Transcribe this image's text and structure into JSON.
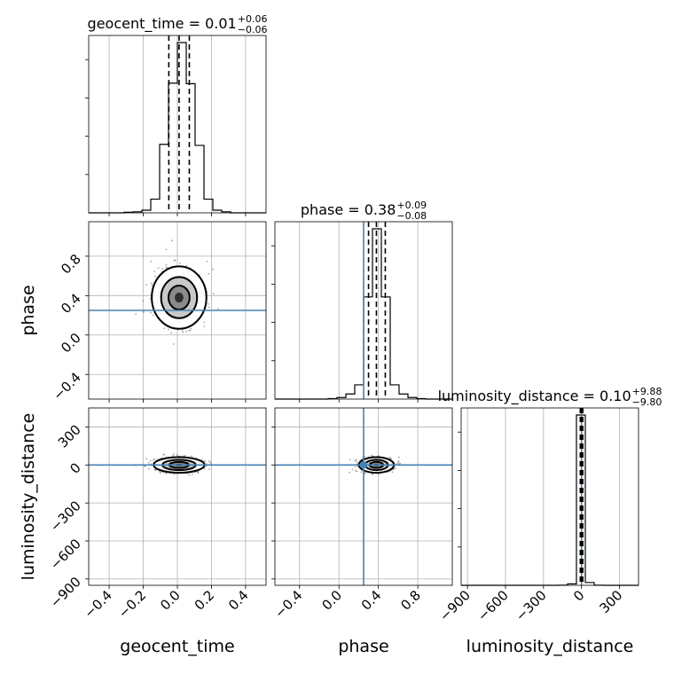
{
  "chart_data": {
    "type": "corner",
    "parameters": [
      "geocent_time",
      "phase",
      "luminosity_distance"
    ],
    "axis_labels": {
      "x": [
        "geocent_time",
        "phase",
        "luminosity_distance"
      ],
      "y": [
        "phase",
        "luminosity_distance"
      ]
    },
    "ranges": {
      "geocent_time": [
        -0.52,
        0.52
      ],
      "phase": [
        -0.65,
        1.15
      ],
      "luminosity_distance": [
        -950,
        450
      ]
    },
    "ticks": {
      "geocent_time": [
        -0.4,
        -0.2,
        0.0,
        0.2,
        0.4
      ],
      "phase": [
        -0.4,
        0.0,
        0.4,
        0.8
      ],
      "luminosity_distance": [
        -900,
        -600,
        -300,
        0,
        300
      ]
    },
    "tick_labels": {
      "geocent_time": [
        "−0.4",
        "−0.2",
        "0.0",
        "0.2",
        "0.4"
      ],
      "phase": [
        "−0.4",
        "0.0",
        "0.4",
        "0.8"
      ],
      "luminosity_distance": [
        "−900",
        "−600",
        "−300",
        "0",
        "300"
      ]
    },
    "titles": [
      {
        "param": "geocent_time",
        "prefix": "geocent_time = 0.01",
        "plus": "+0.06",
        "minus": "−0.06"
      },
      {
        "param": "phase",
        "prefix": "phase = 0.38",
        "plus": "+0.09",
        "minus": "−0.08"
      },
      {
        "param": "luminosity_distance",
        "prefix": "luminosity_distance = 0.10",
        "plus": "+9.88",
        "minus": "−9.80"
      }
    ],
    "medians": {
      "geocent_time": 0.01,
      "phase": 0.38,
      "luminosity_distance": 0.1
    },
    "quantile_lines": {
      "geocent_time": [
        -0.05,
        0.01,
        0.07
      ],
      "phase": [
        0.3,
        0.38,
        0.47
      ],
      "luminosity_distance": [
        -9.7,
        0.1,
        9.98
      ]
    },
    "truths": {
      "phase": 0.25,
      "luminosity_distance": 0
    },
    "histograms": {
      "geocent_time": {
        "edges": [
          -0.52,
          -0.468,
          -0.416,
          -0.364,
          -0.312,
          -0.26,
          -0.208,
          -0.156,
          -0.104,
          -0.052,
          0.0,
          0.052,
          0.104,
          0.156,
          0.208,
          0.26,
          0.312,
          0.364,
          0.416,
          0.468,
          0.52
        ],
        "counts": [
          0,
          0,
          0,
          0,
          1,
          2,
          5,
          26,
          130,
          246,
          323,
          245,
          128,
          26,
          5,
          2,
          0,
          0,
          0,
          0
        ]
      },
      "phase": {
        "edges": [
          -0.65,
          -0.56,
          -0.47,
          -0.38,
          -0.29,
          -0.2,
          -0.11,
          -0.02,
          0.07,
          0.16,
          0.25,
          0.34,
          0.43,
          0.52,
          0.61,
          0.7,
          0.79,
          0.88,
          0.97,
          1.06,
          1.15
        ],
        "counts": [
          0,
          0,
          0,
          0,
          0,
          0,
          1,
          3,
          10,
          28,
          201,
          335,
          201,
          28,
          10,
          3,
          1,
          0,
          0,
          0
        ]
      },
      "luminosity_distance": {
        "edges": [
          -950,
          -880,
          -810,
          -740,
          -670,
          -600,
          -530,
          -460,
          -390,
          -320,
          -250,
          -180,
          -110,
          -40,
          30,
          100,
          170,
          240,
          310,
          380,
          450
        ],
        "counts": [
          0,
          0,
          0,
          0,
          0,
          0,
          0,
          0,
          0,
          0,
          0,
          1,
          8,
          960,
          16,
          1,
          0,
          0,
          0,
          0
        ]
      }
    },
    "grid": true,
    "truth_color": "#4682b4",
    "line_color": "#000000",
    "grid_color": "#b0b0b0"
  }
}
